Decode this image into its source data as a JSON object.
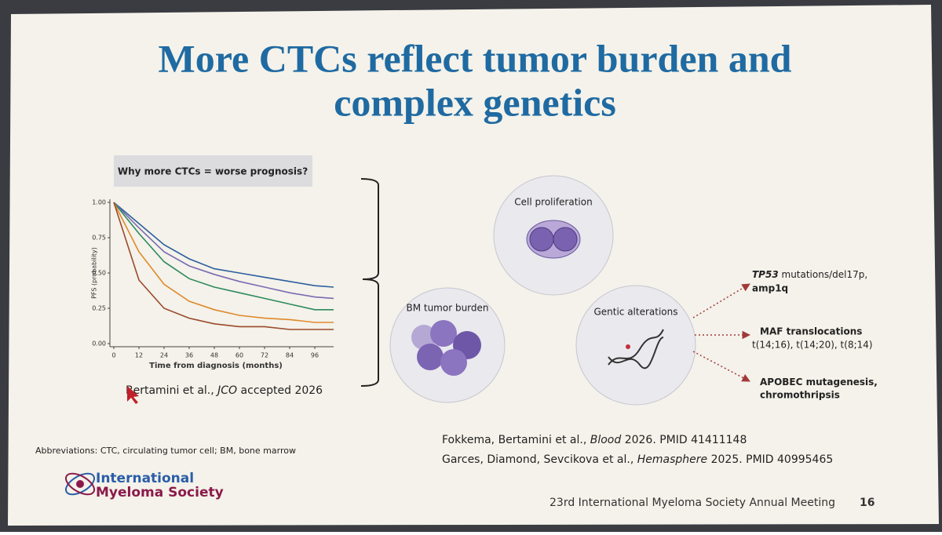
{
  "slide": {
    "title": [
      "More CTCs reflect tumor burden and",
      "complex genetics"
    ],
    "question": "Why more CTCs = worse prognosis?",
    "citation": {
      "authors": "Bertamini et al., ",
      "journal": "JCO",
      "details": " accepted 2026"
    },
    "abbreviations": "Abbreviations: CTC, circulating tumor cell; BM, bone marrow",
    "references": [
      {
        "authors": "Fokkema, Bertamini et al., ",
        "journal": "Blood",
        "details": " 2026. PMID 41411148"
      },
      {
        "authors": "Garces, Diamond, Sevcikova et al., ",
        "journal": "Hemasphere",
        "details": " 2025. PMID 40995465"
      }
    ],
    "logo": [
      "International",
      "Myeloma Society"
    ],
    "footer": "23rd International Myeloma Society Annual Meeting",
    "page_number": 16
  },
  "diagram": {
    "nodes": [
      {
        "label": "Cell proliferation"
      },
      {
        "label": "BM tumor burden"
      },
      {
        "label": "Gentic alterations"
      }
    ],
    "outcomes": [
      {
        "gene": "TP53",
        "line1": " mutations/del17p,",
        "line2": "amp1q"
      },
      {
        "line1": "MAF translocations",
        "line2": "t(14;16), t(14;20), t(8;14)"
      },
      {
        "line1": "APOBEC mutagenesis,",
        "line2": "chromothripsis"
      }
    ]
  },
  "chart_data": {
    "type": "line",
    "xlabel": "Time from diagnosis (months)",
    "ylabel": "PFS (probability)",
    "x": [
      0,
      12,
      24,
      36,
      48,
      60,
      72,
      84,
      96,
      105
    ],
    "series": [
      {
        "color": "#2c5f9e",
        "values": [
          1,
          0.85,
          0.7,
          0.6,
          0.53,
          0.5,
          0.47,
          0.44,
          0.41,
          0.4
        ]
      },
      {
        "color": "#7a6ab2",
        "values": [
          1,
          0.82,
          0.65,
          0.55,
          0.49,
          0.44,
          0.4,
          0.36,
          0.33,
          0.32
        ]
      },
      {
        "color": "#2e8a5c",
        "values": [
          1,
          0.78,
          0.58,
          0.46,
          0.4,
          0.36,
          0.32,
          0.28,
          0.24,
          0.24
        ]
      },
      {
        "color": "#e0892c",
        "values": [
          1,
          0.65,
          0.42,
          0.3,
          0.24,
          0.2,
          0.18,
          0.17,
          0.15,
          0.15
        ]
      },
      {
        "color": "#9b4a2c",
        "values": [
          1,
          0.45,
          0.25,
          0.18,
          0.14,
          0.12,
          0.12,
          0.1,
          0.1,
          0.1
        ]
      }
    ],
    "xlim": [
      0,
      105
    ],
    "ylim": [
      0,
      1
    ],
    "xticks": [
      0,
      12,
      24,
      36,
      48,
      60,
      72,
      84,
      96
    ],
    "yticks": [
      {
        "value": 0,
        "label": "0.00"
      },
      {
        "value": 0.25,
        "label": "0.25"
      },
      {
        "value": 0.5,
        "label": "0.50"
      },
      {
        "value": 0.75,
        "label": "0.75"
      },
      {
        "value": 1,
        "label": "1.00"
      }
    ]
  }
}
